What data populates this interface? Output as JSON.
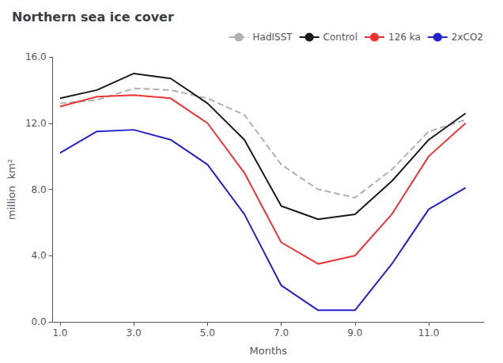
{
  "chart_data": {
    "type": "line",
    "title": "Northern sea ice cover",
    "xlabel": "Months",
    "ylabel": "million  km²",
    "x": [
      1,
      2,
      3,
      4,
      5,
      6,
      7,
      8,
      9,
      10,
      11,
      12
    ],
    "series": [
      {
        "name": "HadISST",
        "color": "#b0b0b0",
        "line_style": "dashed",
        "values": [
          13.2,
          13.4,
          14.1,
          14.0,
          13.5,
          12.5,
          9.5,
          8.0,
          7.5,
          9.2,
          11.5,
          12.2
        ]
      },
      {
        "name": "Control",
        "color": "#1a1a1a",
        "line_style": "solid",
        "values": [
          13.5,
          14.0,
          15.0,
          14.7,
          13.2,
          11.0,
          7.0,
          6.2,
          6.5,
          8.5,
          11.0,
          12.6
        ]
      },
      {
        "name": "126 ka",
        "color": "#ee3333",
        "line_style": "solid",
        "values": [
          13.0,
          13.6,
          13.7,
          13.5,
          12.0,
          9.0,
          4.8,
          3.5,
          4.0,
          6.5,
          10.0,
          12.0
        ]
      },
      {
        "name": "2xCO2",
        "color": "#2222cc",
        "line_style": "solid",
        "values": [
          10.2,
          11.5,
          11.6,
          11.0,
          9.5,
          6.5,
          2.2,
          0.7,
          0.7,
          3.5,
          6.8,
          8.1
        ]
      }
    ],
    "xlim": [
      0.8,
      12.5
    ],
    "ylim": [
      0.0,
      16.0
    ],
    "xticks": [
      {
        "value": 1,
        "label": "1.0"
      },
      {
        "value": 3,
        "label": "3.0"
      },
      {
        "value": 5,
        "label": "5.0"
      },
      {
        "value": 7,
        "label": "7.0"
      },
      {
        "value": 9,
        "label": "9.0"
      },
      {
        "value": 11,
        "label": "11.0"
      }
    ],
    "yticks": [
      {
        "value": 0,
        "label": "0.0"
      },
      {
        "value": 4,
        "label": "4.0"
      },
      {
        "value": 8,
        "label": "8.0"
      },
      {
        "value": 12,
        "label": "12.0"
      },
      {
        "value": 16,
        "label": "16.0"
      }
    ],
    "grid": false,
    "legend": "top"
  }
}
